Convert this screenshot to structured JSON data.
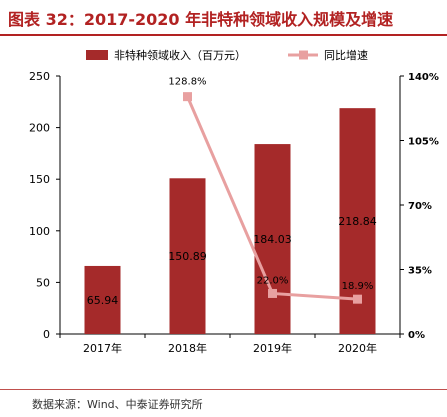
{
  "header": {
    "title": "图表 32：2017-2020 年非特种领域收入规模及增速"
  },
  "chart_data": {
    "type": "bar+line",
    "categories": [
      "2017年",
      "2018年",
      "2019年",
      "2020年"
    ],
    "series": [
      {
        "name": "非特种领域收入（百万元）",
        "type": "bar",
        "axis": "left",
        "color": "#a52a2a",
        "values": [
          65.94,
          150.89,
          184.03,
          218.84
        ],
        "labels": [
          "65.94",
          "150.89",
          "184.03",
          "218.84"
        ]
      },
      {
        "name": "同比增速",
        "type": "line",
        "axis": "right",
        "color": "#e8a0a0",
        "values": [
          null,
          128.8,
          22.0,
          18.9
        ],
        "labels": [
          null,
          "128.8%",
          "22.0%",
          "18.9%"
        ]
      }
    ],
    "y_left": {
      "min": 0,
      "max": 250,
      "ticks": [
        0,
        50,
        100,
        150,
        200,
        250
      ]
    },
    "y_right": {
      "min": 0,
      "max": 140,
      "ticks": [
        "0%",
        "35%",
        "70%",
        "105%",
        "140%"
      ],
      "tick_values": [
        0,
        35,
        70,
        105,
        140
      ]
    },
    "legend_position": "top",
    "grid": false
  },
  "footer": {
    "source": "数据来源：Wind、中泰证券研究所"
  }
}
